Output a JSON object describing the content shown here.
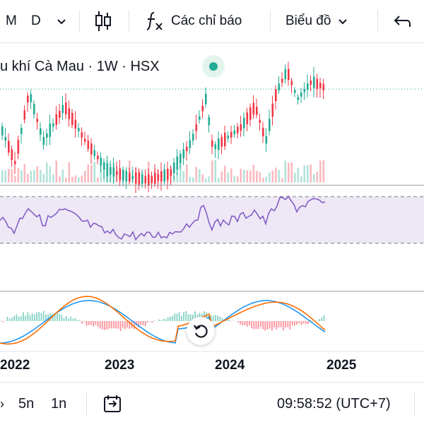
{
  "toolbar": {
    "interval_m": "M",
    "interval_d": "D",
    "indicators_label": "Các chỉ báo",
    "chart_type_label": "Biểu đồ"
  },
  "legend": {
    "symbol_text": "u khí Cà Mau · 1W · HSX"
  },
  "chart": {
    "up_color": "#22ab94",
    "down_color": "#f23645",
    "rsi_color": "#7e57c2",
    "macd_color": "#2196f3",
    "signal_color": "#ff6d00",
    "x_labels": [
      "2022",
      "2023",
      "2024",
      "2025"
    ]
  },
  "bottombar": {
    "range_5n": "5n",
    "range_1n": "1n",
    "time_display": "09:58:52 (UTC+7)"
  }
}
